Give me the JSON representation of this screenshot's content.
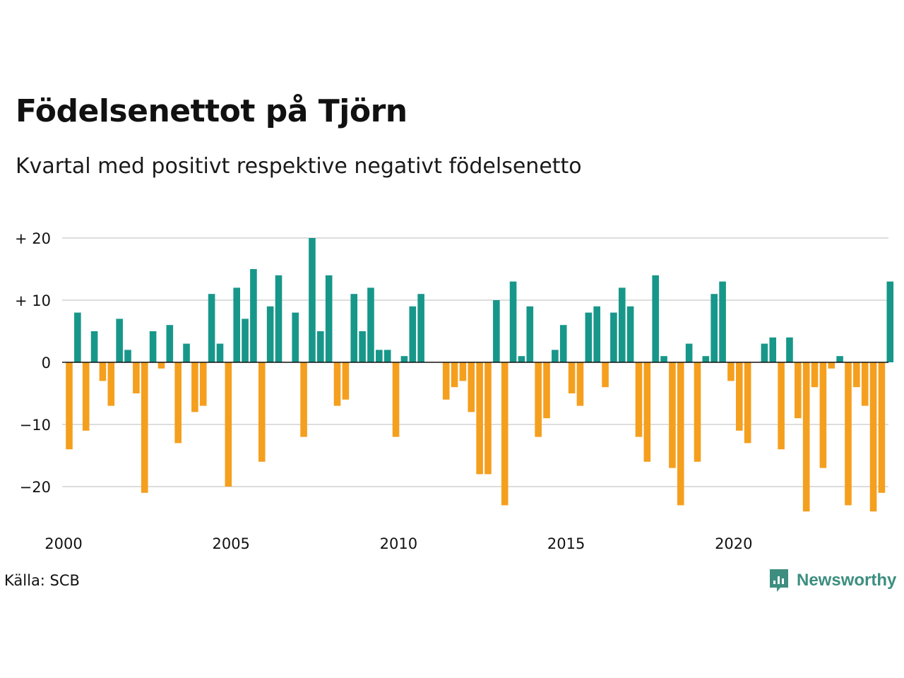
{
  "title": "Födelsenettot på Tjörn",
  "subtitle": "Kvartal med positivt respektive negativt födelsenetto",
  "source": "Källa: SCB",
  "logo_text": "Newsworthy",
  "colors": {
    "positive": "#17978a",
    "negative": "#f59f1e",
    "grid": "#dddddd",
    "axis": "#111111",
    "brand": "#3d8e80"
  },
  "chart_data": {
    "type": "bar",
    "title": "Födelsenettot på Tjörn",
    "subtitle": "Kvartal med positivt respektive negativt födelsenetto",
    "xlabel": "",
    "ylabel": "",
    "ylim": [
      -25,
      20
    ],
    "y_ticks": [
      {
        "value": 20,
        "label": "+ 20"
      },
      {
        "value": 10,
        "label": "+ 10"
      },
      {
        "value": 0,
        "label": "0"
      },
      {
        "value": -10,
        "label": "−10"
      },
      {
        "value": -20,
        "label": "−20"
      }
    ],
    "x_ticks": [
      {
        "year": 2000,
        "label": "2000"
      },
      {
        "year": 2005,
        "label": "2005"
      },
      {
        "year": 2010,
        "label": "2010"
      },
      {
        "year": 2015,
        "label": "2015"
      },
      {
        "year": 2020,
        "label": "2020"
      }
    ],
    "start": "2000 Q1",
    "frequency": "quarter",
    "grid": true,
    "values": [
      -14,
      8,
      -11,
      5,
      -3,
      -7,
      7,
      2,
      -5,
      -21,
      5,
      -1,
      6,
      -13,
      3,
      -8,
      -7,
      11,
      3,
      -20,
      12,
      7,
      15,
      -16,
      9,
      14,
      0,
      8,
      -12,
      20,
      5,
      14,
      -7,
      -6,
      11,
      5,
      12,
      2,
      2,
      -12,
      1,
      9,
      11,
      0,
      0,
      -6,
      -4,
      -3,
      -8,
      -18,
      -18,
      10,
      -23,
      13,
      1,
      9,
      -12,
      -9,
      2,
      6,
      -5,
      -7,
      8,
      9,
      -4,
      8,
      12,
      9,
      -12,
      -16,
      14,
      1,
      -17,
      -23,
      3,
      -16,
      1,
      11,
      13,
      -3,
      -11,
      -13,
      0,
      3,
      4,
      -14,
      4,
      -9,
      -24,
      -4,
      -17,
      -1,
      1,
      -23,
      -4,
      -7,
      -24,
      -21,
      13
    ]
  }
}
